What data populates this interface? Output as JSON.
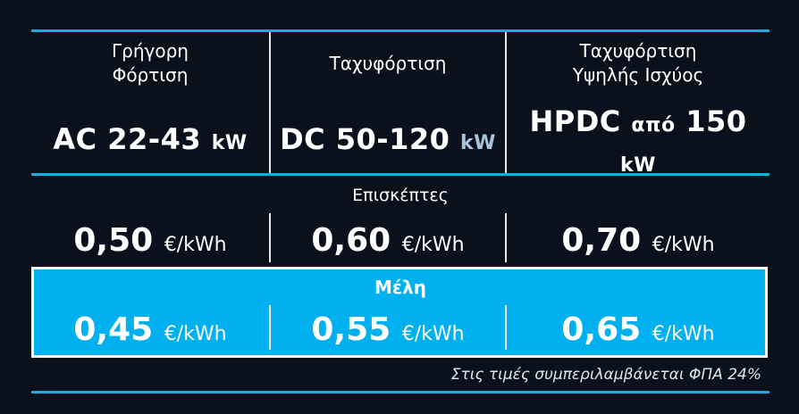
{
  "columns": [
    {
      "title": "Γρήγορη Φόρτιση",
      "type": "AC",
      "range": "22-43",
      "unit": "kW"
    },
    {
      "title": "Ταχυφόρτιση",
      "type": "DC",
      "range": "50-120",
      "unit": "kW"
    },
    {
      "title": "Ταχυφόρτιση Υψηλής Ισχύος",
      "type": "HPDC",
      "prefix": "από",
      "range": "150",
      "unit": "kW"
    }
  ],
  "visitors": {
    "label": "Επισκέπτες",
    "prices": [
      "0,50",
      "0,60",
      "0,70"
    ]
  },
  "members": {
    "label": "Μέλη",
    "prices": [
      "0,45",
      "0,55",
      "0,65"
    ]
  },
  "price_unit": "€/kWh",
  "vat_note": "Στις τιμές συμπεριλαμβάνεται ΦΠΑ 24%",
  "colors": {
    "background": "#0a111c",
    "accent": "#1fa8e0",
    "members": "#00b0ef"
  }
}
